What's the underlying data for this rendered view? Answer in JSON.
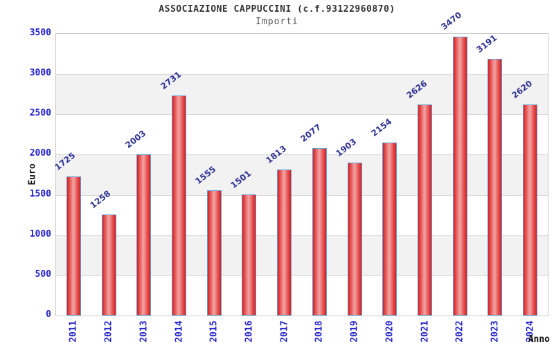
{
  "chart_data": {
    "type": "bar",
    "title": "ASSOCIAZIONE CAPPUCCINI (c.f.93122960870)",
    "subtitle": "Importi",
    "categories": [
      "2011",
      "2012",
      "2013",
      "2014",
      "2015",
      "2016",
      "2017",
      "2018",
      "2019",
      "2020",
      "2021",
      "2022",
      "2023",
      "2024"
    ],
    "values": [
      1725,
      1258,
      2003,
      2731,
      1555,
      1501,
      1813,
      2077,
      1903,
      2154,
      2626,
      3470,
      3191,
      2620
    ],
    "xlabel": "Anno",
    "ylabel": "Euro",
    "ylim": [
      0,
      3500
    ],
    "ytick_step": 500,
    "ytick_labels": [
      "0",
      "500",
      "1000",
      "1500",
      "2000",
      "2500",
      "3000",
      "3500"
    ],
    "grid": true,
    "legend_position": "none",
    "colors": {
      "bar_fill_edge": "#d81e1e",
      "bar_fill_mid": "#e4504f",
      "bar_fill_center": "#f2a6a5",
      "bar_border": "#58a0dc",
      "axis_tick_text": "#2222cc",
      "value_label_text": "#2e3192",
      "band_fill": "#f2f2f3",
      "gridline": "#d9d9d9",
      "plot_border": "#c8c8c8",
      "title_text": "#333333",
      "subtitle_text": "#555555",
      "axis_title_text": "#111111",
      "background": "#ffffff"
    }
  }
}
